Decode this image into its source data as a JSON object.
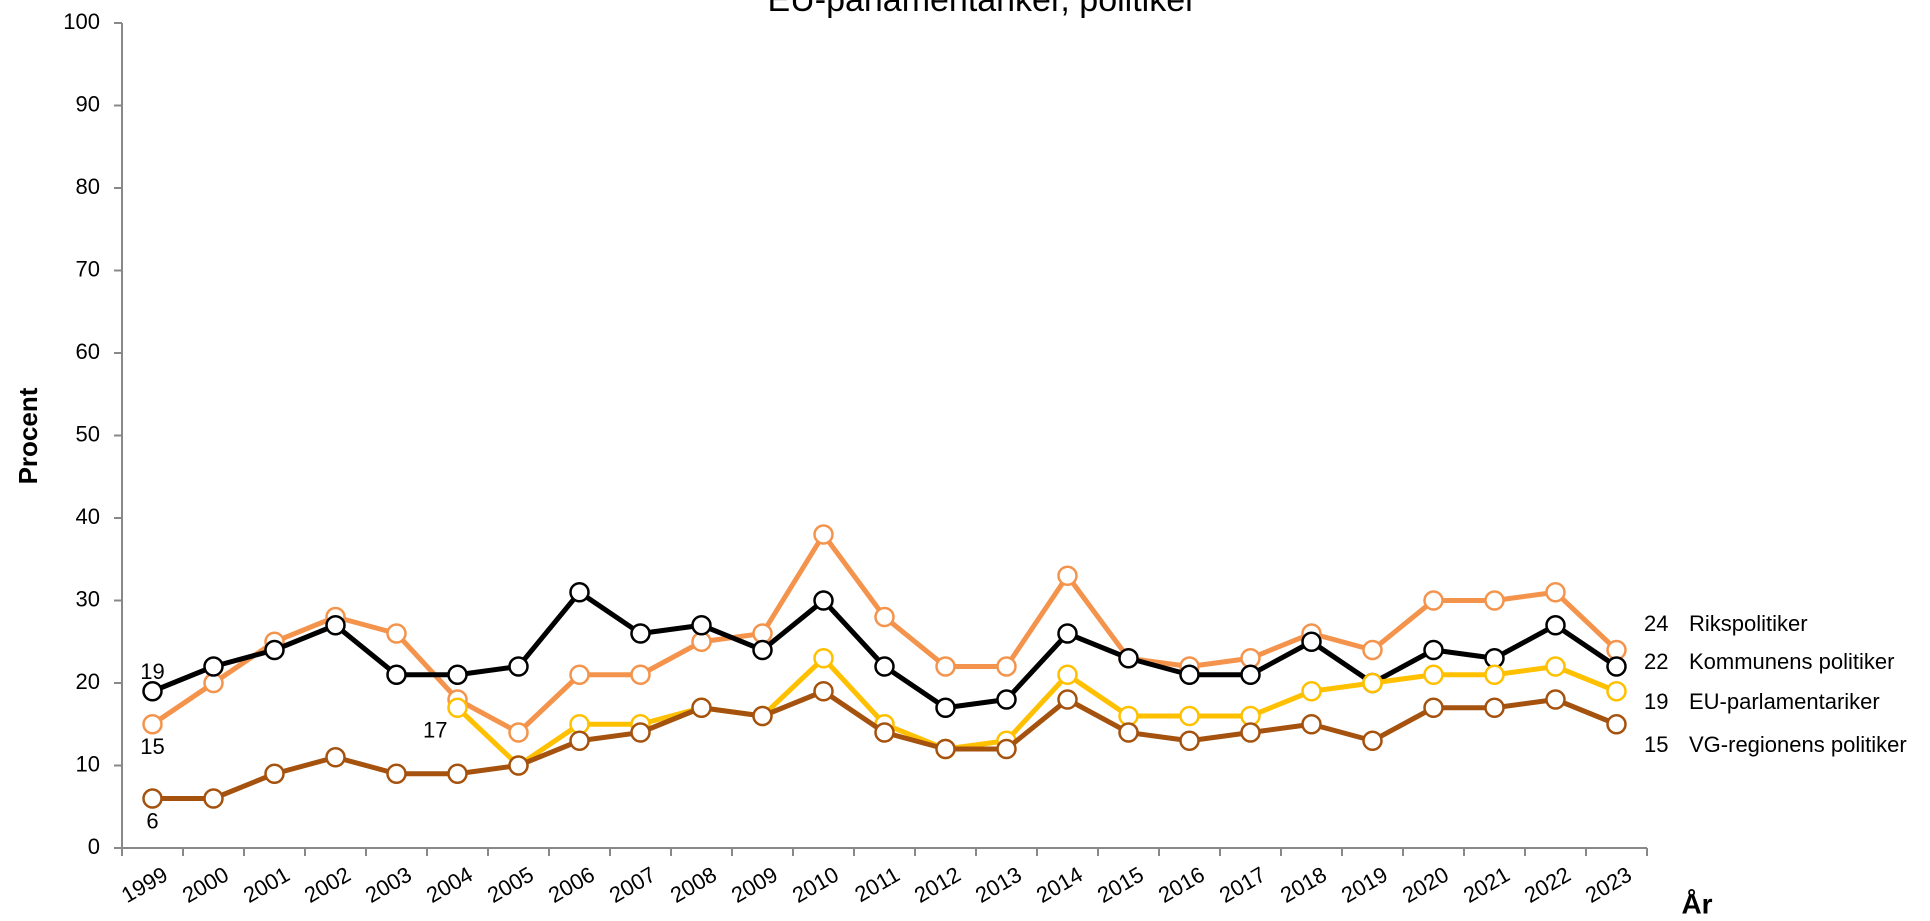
{
  "chart_data": {
    "type": "line",
    "title": "EU-parlamentariker, politiker",
    "ylabel": "Procent",
    "xlabel": "År",
    "categories": [
      "1999",
      "2000",
      "2001",
      "2002",
      "2003",
      "2004",
      "2005",
      "2006",
      "2007",
      "2008",
      "2009",
      "2010",
      "2011",
      "2012",
      "2013",
      "2014",
      "2015",
      "2016",
      "2017",
      "2018",
      "2019",
      "2020",
      "2021",
      "2022",
      "2023"
    ],
    "series": [
      {
        "name": "Rikspolitiker",
        "color": "#f4944c",
        "values": [
          15,
          20,
          25,
          28,
          26,
          18,
          14,
          21,
          21,
          25,
          26,
          38,
          28,
          22,
          22,
          33,
          23,
          22,
          23,
          26,
          24,
          30,
          30,
          31,
          24
        ]
      },
      {
        "name": "Kommunens politiker",
        "color": "#000000",
        "values": [
          19,
          22,
          24,
          27,
          21,
          21,
          22,
          31,
          26,
          27,
          24,
          30,
          22,
          17,
          18,
          26,
          23,
          21,
          21,
          25,
          20,
          24,
          23,
          27,
          22
        ]
      },
      {
        "name": "EU-parlamentariker",
        "color": "#ffc000",
        "values": [
          null,
          null,
          null,
          null,
          null,
          17,
          10,
          15,
          15,
          17,
          16,
          23,
          15,
          12,
          13,
          21,
          16,
          16,
          16,
          19,
          20,
          21,
          21,
          22,
          19
        ]
      },
      {
        "name": "VG-regionens politiker",
        "color": "#a5520f",
        "values": [
          6,
          6,
          9,
          11,
          9,
          9,
          10,
          13,
          14,
          17,
          16,
          19,
          14,
          12,
          12,
          18,
          14,
          13,
          14,
          15,
          13,
          17,
          17,
          18,
          15
        ]
      }
    ],
    "ylim": [
      0,
      100
    ],
    "yticks": [
      0,
      10,
      20,
      30,
      40,
      50,
      60,
      70,
      80,
      90,
      100
    ],
    "grid": false
  }
}
